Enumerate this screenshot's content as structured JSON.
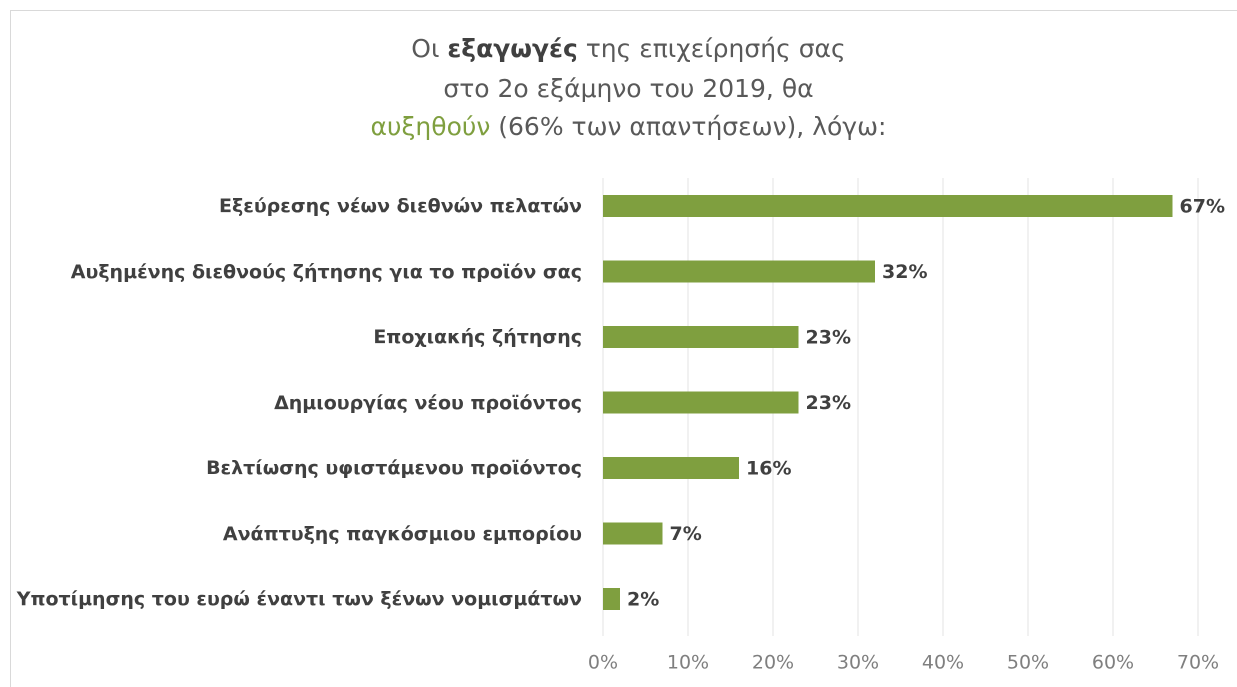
{
  "chart_data": {
    "type": "bar",
    "orientation": "horizontal",
    "title": [
      [
        "Οι ",
        "εξαγωγές",
        " της επιχείρησής σας"
      ],
      [
        "στο 2ο εξάμηνο του 2019, θα"
      ],
      [
        "αυξηθούν",
        " (66% των απαντήσεων), λόγω:"
      ]
    ],
    "categories": [
      "Εξεύρεσης νέων διεθνών πελατών",
      "Αυξημένης διεθνούς ζήτησης για το προϊόν σας",
      "Εποχιακής ζήτησης",
      "Δημιουργίας νέου προϊόντος",
      "Βελτίωσης υφιστάμενου προϊόντος",
      "Ανάπτυξης παγκόσμιου εμπορίου",
      "Υποτίμησης του ευρώ έναντι των ξένων νομισμάτων"
    ],
    "values": [
      67,
      32,
      23,
      23,
      16,
      7,
      2
    ],
    "value_labels": [
      "67%",
      "32%",
      "23%",
      "23%",
      "16%",
      "7%",
      "2%"
    ],
    "color": "#7f9f3f",
    "xlim": [
      0,
      70
    ],
    "xticks": [
      {
        "value": 0,
        "label": "0%"
      },
      {
        "value": 10,
        "label": "10%"
      },
      {
        "value": 20,
        "label": "20%"
      },
      {
        "value": 30,
        "label": "30%"
      },
      {
        "value": 40,
        "label": "40%"
      },
      {
        "value": 50,
        "label": "50%"
      },
      {
        "value": 60,
        "label": "60%"
      },
      {
        "value": 70,
        "label": "70%"
      }
    ],
    "grid": true
  }
}
